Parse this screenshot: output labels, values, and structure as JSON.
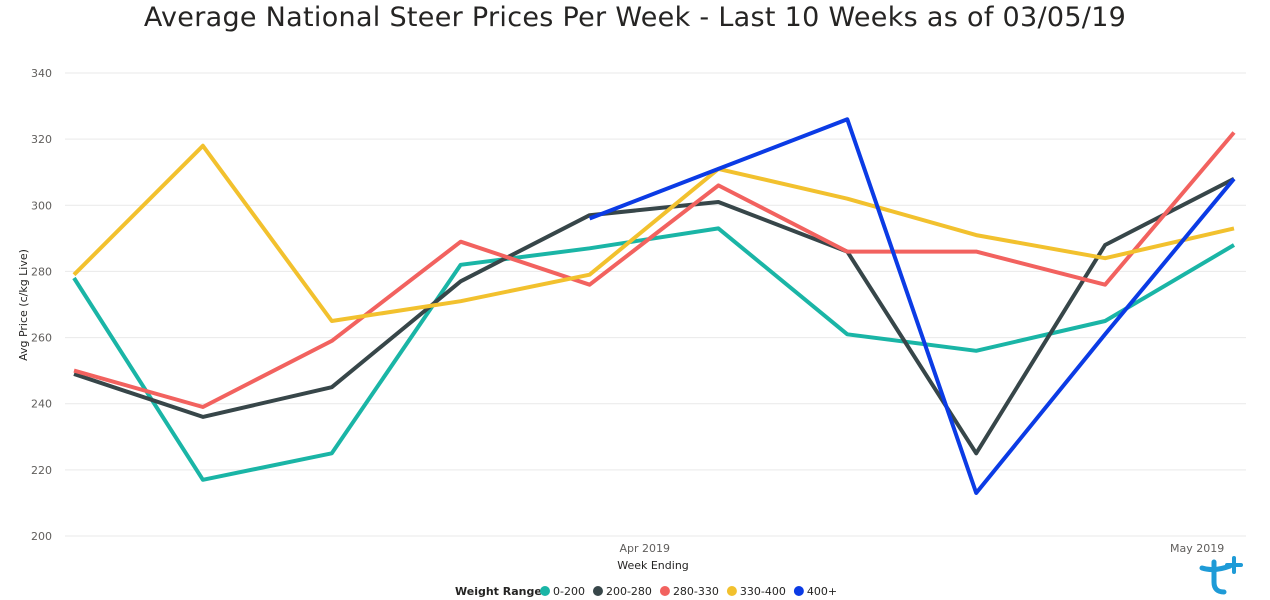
{
  "chart_data": {
    "type": "line",
    "title": "Average National Steer Prices Per Week - Last 10 Weeks as of 03/05/19",
    "xlabel": "Week Ending",
    "ylabel": "Avg Price (c/kg Live)",
    "ylim": [
      200,
      340
    ],
    "yticks": [
      200,
      220,
      240,
      260,
      280,
      300,
      320,
      340
    ],
    "x": [
      "2019-03-01",
      "2019-03-08",
      "2019-03-15",
      "2019-03-22",
      "2019-03-29",
      "2019-04-05",
      "2019-04-12",
      "2019-04-19",
      "2019-04-26",
      "2019-05-03"
    ],
    "xticks": [
      {
        "date": "2019-04-01",
        "label": "Apr 2019"
      },
      {
        "date": "2019-05-01",
        "label": "May 2019"
      }
    ],
    "grid": true,
    "legend_title": "Weight Range",
    "legend_position": "bottom",
    "series": [
      {
        "name": "0-200",
        "color": "#1ab5a6",
        "values": [
          278,
          217,
          225,
          282,
          287,
          293,
          261,
          256,
          265,
          288
        ]
      },
      {
        "name": "200-280",
        "color": "#374649",
        "values": [
          249,
          236,
          245,
          277,
          297,
          301,
          286,
          225,
          288,
          308
        ]
      },
      {
        "name": "280-330",
        "color": "#f2625f",
        "values": [
          250,
          239,
          259,
          289,
          276,
          306,
          286,
          286,
          276,
          322
        ]
      },
      {
        "name": "330-400",
        "color": "#f2c12e",
        "values": [
          279,
          318,
          265,
          271,
          279,
          311,
          302,
          291,
          284,
          293
        ]
      },
      {
        "name": "400+",
        "color": "#0b3be5",
        "values": [
          null,
          null,
          null,
          null,
          296,
          311,
          326,
          213,
          261,
          308
        ]
      }
    ]
  }
}
